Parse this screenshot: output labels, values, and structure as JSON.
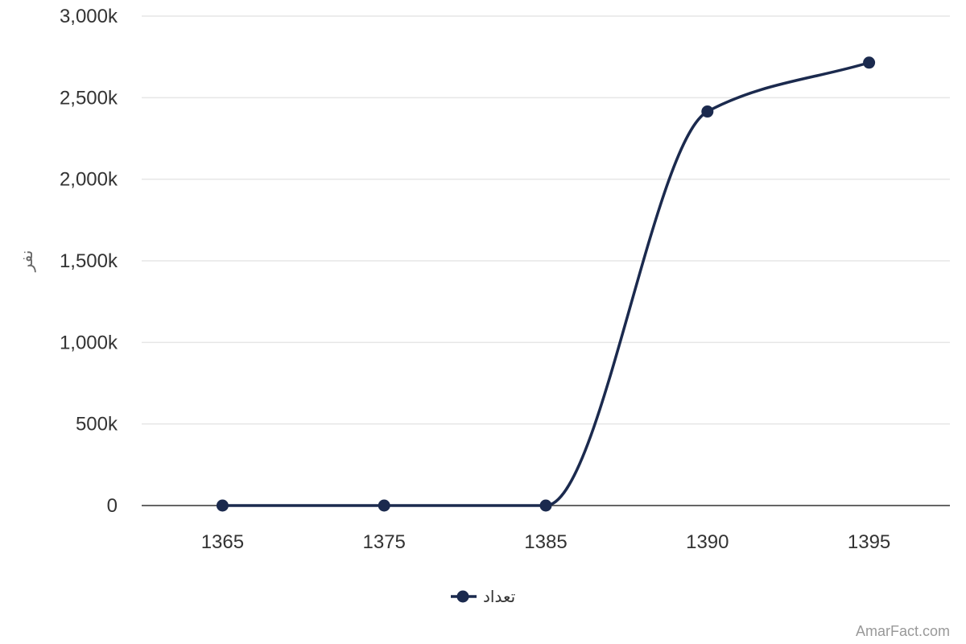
{
  "chart_data": {
    "type": "line",
    "categories": [
      "1365",
      "1375",
      "1385",
      "1390",
      "1395"
    ],
    "series": [
      {
        "name": "تعداد",
        "values": [
          0,
          0,
          0,
          2415000,
          2715000
        ]
      }
    ],
    "ylabel": "نفر",
    "ylim": [
      0,
      3000000
    ],
    "yticks": [
      0,
      500000,
      1000000,
      1500000,
      2000000,
      2500000,
      3000000
    ],
    "ytick_labels": [
      "0",
      "500k",
      "1,000k",
      "1,500k",
      "2,000k",
      "2,500k",
      "3,000k"
    ],
    "grid": true,
    "legend_position": "bottom-center",
    "series_color": "#1b2a4e"
  },
  "credit": "AmarFact.com"
}
